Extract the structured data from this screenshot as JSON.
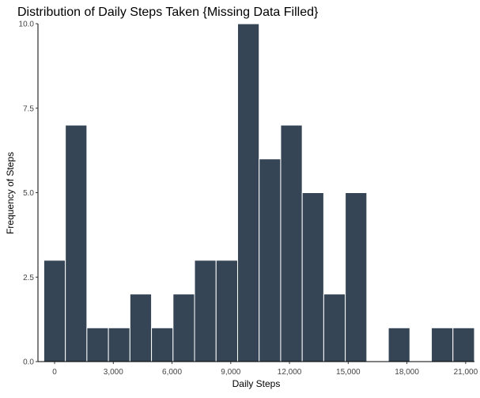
{
  "chart_data": {
    "type": "bar",
    "title": "Distribution of Daily Steps Taken {Missing Data Filled}",
    "xlabel": "Daily Steps",
    "ylabel": "Frequency of Steps",
    "bin_width": 1100,
    "bins": [
      {
        "x_start": -550,
        "x_end": 550,
        "count": 3
      },
      {
        "x_start": 550,
        "x_end": 1650,
        "count": 7
      },
      {
        "x_start": 1650,
        "x_end": 2750,
        "count": 1
      },
      {
        "x_start": 2750,
        "x_end": 3850,
        "count": 1
      },
      {
        "x_start": 3850,
        "x_end": 4950,
        "count": 2
      },
      {
        "x_start": 4950,
        "x_end": 6050,
        "count": 1
      },
      {
        "x_start": 6050,
        "x_end": 7150,
        "count": 2
      },
      {
        "x_start": 7150,
        "x_end": 8250,
        "count": 3
      },
      {
        "x_start": 8250,
        "x_end": 9350,
        "count": 3
      },
      {
        "x_start": 9350,
        "x_end": 10450,
        "count": 10
      },
      {
        "x_start": 10450,
        "x_end": 11550,
        "count": 6
      },
      {
        "x_start": 11550,
        "x_end": 12650,
        "count": 7
      },
      {
        "x_start": 12650,
        "x_end": 13750,
        "count": 5
      },
      {
        "x_start": 13750,
        "x_end": 14850,
        "count": 2
      },
      {
        "x_start": 14850,
        "x_end": 15950,
        "count": 5
      },
      {
        "x_start": 15950,
        "x_end": 17050,
        "count": 0
      },
      {
        "x_start": 17050,
        "x_end": 18150,
        "count": 1
      },
      {
        "x_start": 18150,
        "x_end": 19250,
        "count": 0
      },
      {
        "x_start": 19250,
        "x_end": 20350,
        "count": 1
      },
      {
        "x_start": 20350,
        "x_end": 21450,
        "count": 1
      }
    ],
    "xlim": [
      -850,
      21450
    ],
    "ylim": [
      0,
      10
    ],
    "x_ticks": [
      0,
      3000,
      6000,
      9000,
      12000,
      15000,
      18000,
      21000
    ],
    "x_tick_labels": [
      "0",
      "3,000",
      "6,000",
      "9,000",
      "12,000",
      "15,000",
      "18,000",
      "21,000"
    ],
    "y_ticks": [
      0,
      2.5,
      5,
      7.5,
      10
    ],
    "y_tick_labels": [
      "0.0",
      "2.5",
      "5.0",
      "7.5",
      "10.0"
    ],
    "bar_color": "#354555",
    "bar_edge_color": "#ffffff",
    "axis_color": "#000000",
    "grid": false,
    "legend": "none"
  }
}
